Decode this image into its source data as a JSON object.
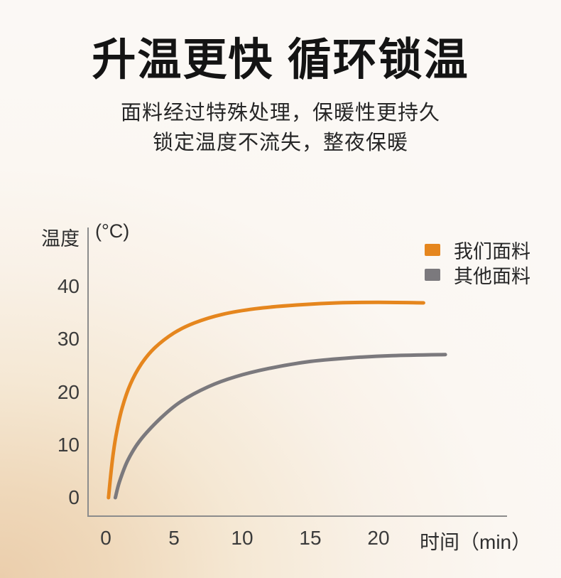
{
  "header": {
    "title": "升温更快 循环锁温",
    "subtitle_line1": "面料经过特殊处理，保暖性更持久",
    "subtitle_line2": "锁定温度不流失，整夜保暖"
  },
  "colors": {
    "accent_orange": "#E5861E",
    "series_gray": "#7B797D",
    "axis_gray": "#8C8C8C",
    "background_peach": "#EBCEAC"
  },
  "chart_data": {
    "type": "line",
    "title": "",
    "ylabel": "温度",
    "ylabel_unit": "(°C)",
    "xlabel": "时间（min）",
    "x_ticks": [
      0,
      5,
      10,
      15,
      20
    ],
    "y_ticks": [
      0,
      10,
      20,
      30,
      40
    ],
    "xlim": [
      0,
      26
    ],
    "ylim": [
      0,
      44
    ],
    "grid": false,
    "legend_position": "top-right",
    "series": [
      {
        "name": "我们面料",
        "color": "#E5861E",
        "points": [
          [
            0.2,
            0
          ],
          [
            0.35,
            4
          ],
          [
            0.55,
            8.5
          ],
          [
            0.8,
            12.5
          ],
          [
            1.2,
            17
          ],
          [
            1.8,
            21.5
          ],
          [
            2.6,
            25.3
          ],
          [
            3.6,
            28.4
          ],
          [
            5,
            31.2
          ],
          [
            6.5,
            33.1
          ],
          [
            8.5,
            34.7
          ],
          [
            11,
            35.8
          ],
          [
            14,
            36.5
          ],
          [
            17,
            36.9
          ],
          [
            20,
            37
          ],
          [
            23.3,
            36.9
          ]
        ]
      },
      {
        "name": "其他面料",
        "color": "#7B797D",
        "points": [
          [
            0.7,
            0
          ],
          [
            1.0,
            3
          ],
          [
            1.6,
            7
          ],
          [
            2.5,
            10.8
          ],
          [
            4,
            15
          ],
          [
            5.5,
            18.2
          ],
          [
            7.5,
            21
          ],
          [
            9.5,
            22.9
          ],
          [
            12,
            24.5
          ],
          [
            15,
            25.8
          ],
          [
            18,
            26.5
          ],
          [
            21,
            26.9
          ],
          [
            24.9,
            27.1
          ]
        ]
      }
    ]
  }
}
